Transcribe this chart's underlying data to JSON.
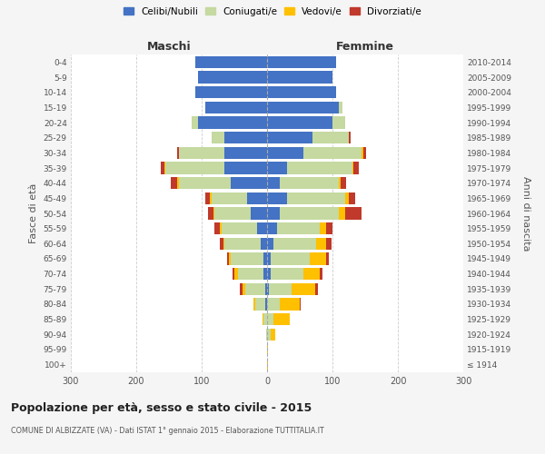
{
  "age_groups": [
    "100+",
    "95-99",
    "90-94",
    "85-89",
    "80-84",
    "75-79",
    "70-74",
    "65-69",
    "60-64",
    "55-59",
    "50-54",
    "45-49",
    "40-44",
    "35-39",
    "30-34",
    "25-29",
    "20-24",
    "15-19",
    "10-14",
    "5-9",
    "0-4"
  ],
  "birth_years": [
    "≤ 1914",
    "1915-1919",
    "1920-1924",
    "1925-1929",
    "1930-1934",
    "1935-1939",
    "1940-1944",
    "1945-1949",
    "1950-1954",
    "1955-1959",
    "1960-1964",
    "1965-1969",
    "1970-1974",
    "1975-1979",
    "1980-1984",
    "1985-1989",
    "1990-1994",
    "1995-1999",
    "2000-2004",
    "2005-2009",
    "2010-2014"
  ],
  "male_celibi": [
    0,
    0,
    0,
    0,
    3,
    3,
    5,
    5,
    10,
    15,
    25,
    30,
    55,
    65,
    65,
    65,
    105,
    95,
    110,
    105,
    110
  ],
  "male_coniugati": [
    0,
    0,
    2,
    5,
    15,
    30,
    40,
    50,
    55,
    55,
    55,
    55,
    80,
    90,
    70,
    20,
    10,
    0,
    0,
    0,
    0
  ],
  "male_vedovi": [
    0,
    0,
    0,
    2,
    3,
    5,
    5,
    3,
    2,
    2,
    2,
    2,
    2,
    2,
    0,
    0,
    0,
    0,
    0,
    0,
    0
  ],
  "male_divorziati": [
    0,
    0,
    0,
    0,
    0,
    3,
    3,
    3,
    5,
    8,
    8,
    8,
    10,
    5,
    3,
    0,
    0,
    0,
    0,
    0,
    0
  ],
  "female_celibi": [
    0,
    0,
    0,
    0,
    0,
    3,
    5,
    5,
    10,
    15,
    20,
    30,
    20,
    30,
    55,
    70,
    100,
    110,
    105,
    100,
    105
  ],
  "female_coniugati": [
    0,
    0,
    5,
    10,
    20,
    35,
    50,
    60,
    65,
    65,
    90,
    90,
    90,
    100,
    90,
    55,
    20,
    5,
    0,
    0,
    0
  ],
  "female_vedovi": [
    2,
    2,
    8,
    25,
    30,
    35,
    25,
    25,
    15,
    10,
    10,
    5,
    3,
    2,
    2,
    0,
    0,
    0,
    0,
    0,
    0
  ],
  "female_divorziati": [
    0,
    0,
    0,
    0,
    2,
    5,
    5,
    5,
    8,
    10,
    25,
    10,
    8,
    8,
    5,
    3,
    0,
    0,
    0,
    0,
    0
  ],
  "colors": {
    "celibi": "#4472c4",
    "coniugati": "#c5d9a0",
    "vedovi": "#ffc000",
    "divorziati": "#c0392b"
  },
  "title": "Popolazione per età, sesso e stato civile - 2015",
  "subtitle": "COMUNE DI ALBIZZATE (VA) - Dati ISTAT 1° gennaio 2015 - Elaborazione TUTTITALIA.IT",
  "xlabel_left": "Maschi",
  "xlabel_right": "Femmine",
  "ylabel_left": "Fasce di età",
  "ylabel_right": "Anni di nascita",
  "xlim": 300,
  "legend_labels": [
    "Celibi/Nubili",
    "Coniugati/e",
    "Vedovi/e",
    "Divorziati/e"
  ],
  "bg_color": "#f5f5f5",
  "plot_bg_color": "#ffffff"
}
